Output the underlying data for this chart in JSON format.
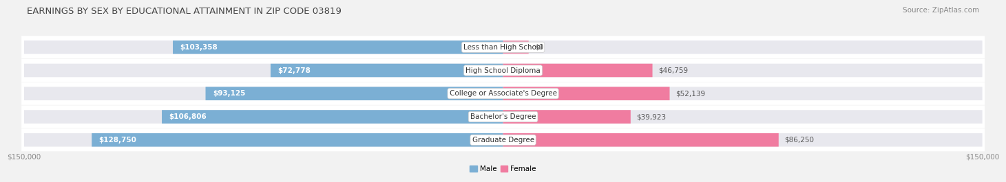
{
  "title": "EARNINGS BY SEX BY EDUCATIONAL ATTAINMENT IN ZIP CODE 03819",
  "source": "Source: ZipAtlas.com",
  "categories": [
    "Less than High School",
    "High School Diploma",
    "College or Associate's Degree",
    "Bachelor's Degree",
    "Graduate Degree"
  ],
  "male_values": [
    103358,
    72778,
    93125,
    106806,
    128750
  ],
  "female_values": [
    0,
    46759,
    52139,
    39923,
    86250
  ],
  "female_stub_value": 8000,
  "male_color": "#7bafd4",
  "female_color": "#f07ca0",
  "male_label": "Male",
  "female_label": "Female",
  "x_max": 150000,
  "bg_color": "#f2f2f2",
  "row_bg_color": "#ffffff",
  "bar_track_color": "#e8e8ee",
  "title_fontsize": 9.5,
  "source_fontsize": 7.5,
  "label_fontsize": 7.5,
  "value_fontsize": 7.5,
  "tick_fontsize": 7.5
}
